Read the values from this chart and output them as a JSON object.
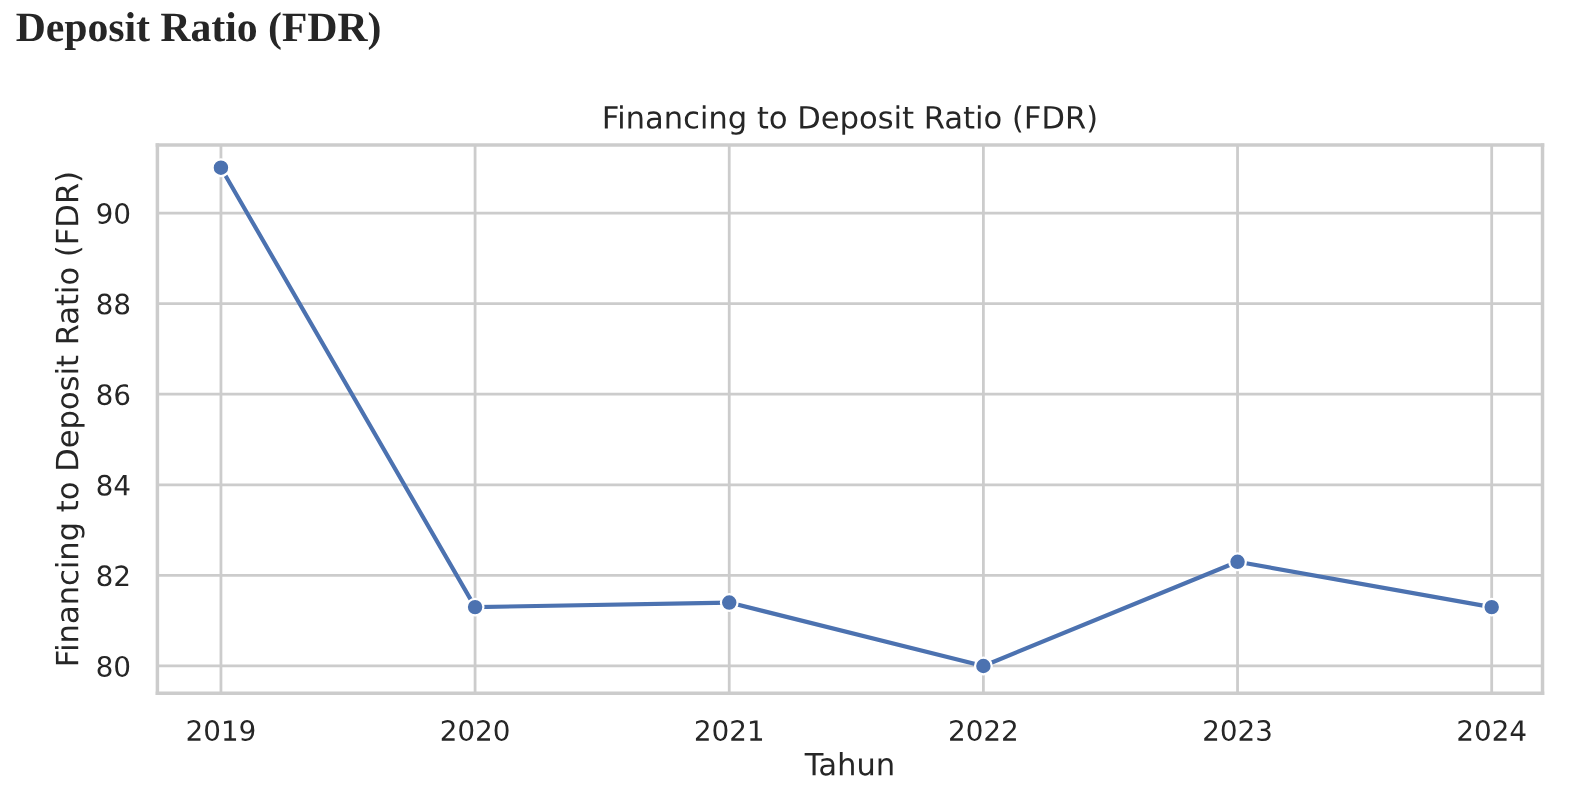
{
  "chart_data": {
    "type": "line",
    "title": "Financing to Deposit Ratio (FDR)",
    "xlabel": "Tahun",
    "ylabel": "Financing to Deposit Ratio (FDR)",
    "annotations": [
      "Deposit Ratio (FDR)"
    ],
    "x": [
      2019,
      2020,
      2021,
      2022,
      2023,
      2024
    ],
    "series": [
      {
        "color": "#4c72b0",
        "values": [
          91.0,
          81.3,
          81.4,
          80.0,
          82.3,
          81.3
        ]
      }
    ],
    "xlim": [
      2018.75,
      2024.2
    ],
    "xticks": [
      2019,
      2020,
      2021,
      2022,
      2023,
      2024
    ],
    "ylim": [
      79.4,
      91.5
    ],
    "yticks": [
      80,
      82,
      84,
      86,
      88,
      90
    ],
    "grid": true,
    "marker": "circle",
    "line_style": "solid",
    "legend": false
  }
}
